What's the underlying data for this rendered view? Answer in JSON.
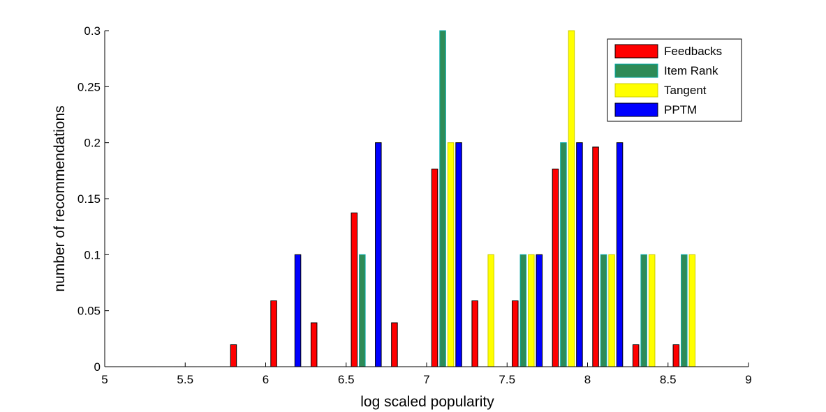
{
  "chart_data": {
    "type": "bar",
    "title": "",
    "xlabel": "log scaled popularity",
    "ylabel": "number of recommendations",
    "xlim": [
      5,
      9
    ],
    "ylim": [
      0,
      0.3
    ],
    "xticks": [
      "5",
      "5.5",
      "6",
      "6.5",
      "7",
      "7.5",
      "8",
      "8.5",
      "9"
    ],
    "yticks": [
      "0",
      "0.05",
      "0.1",
      "0.15",
      "0.2",
      "0.25",
      "0.3"
    ],
    "grid": false,
    "legend_position": "top-right",
    "categories": [
      5.125,
      5.375,
      5.625,
      5.875,
      6.125,
      6.375,
      6.625,
      6.875,
      7.125,
      7.375,
      7.625,
      7.875,
      8.125,
      8.375,
      8.625,
      8.875
    ],
    "series": [
      {
        "name": "Feedbacks",
        "color": "#ff0000",
        "stroke": "#000000",
        "values": [
          0,
          0,
          0,
          0.0196,
          0.0588,
          0.0392,
          0.1373,
          0.0392,
          0.1765,
          0.0588,
          0.0588,
          0.1765,
          0.1961,
          0.0196,
          0.0196,
          0
        ]
      },
      {
        "name": "Item Rank",
        "color": "#2e8b57",
        "stroke": "#00aaaa",
        "values": [
          0,
          0,
          0,
          0,
          0,
          0,
          0.1,
          0,
          0.3,
          0,
          0.1,
          0.2,
          0.1,
          0.1,
          0.1,
          0
        ]
      },
      {
        "name": "Tangent",
        "color": "#ffff00",
        "stroke": "#cccc00",
        "values": [
          0,
          0,
          0,
          0,
          0,
          0,
          0,
          0,
          0.2,
          0.1,
          0.1,
          0.3,
          0.1,
          0.1,
          0.1,
          0
        ]
      },
      {
        "name": "PPTM",
        "color": "#0000ff",
        "stroke": "#000000",
        "values": [
          0,
          0,
          0,
          0,
          0.1,
          0,
          0.2,
          0,
          0.2,
          0,
          0.1,
          0.2,
          0.2,
          0,
          0,
          0
        ]
      }
    ]
  }
}
